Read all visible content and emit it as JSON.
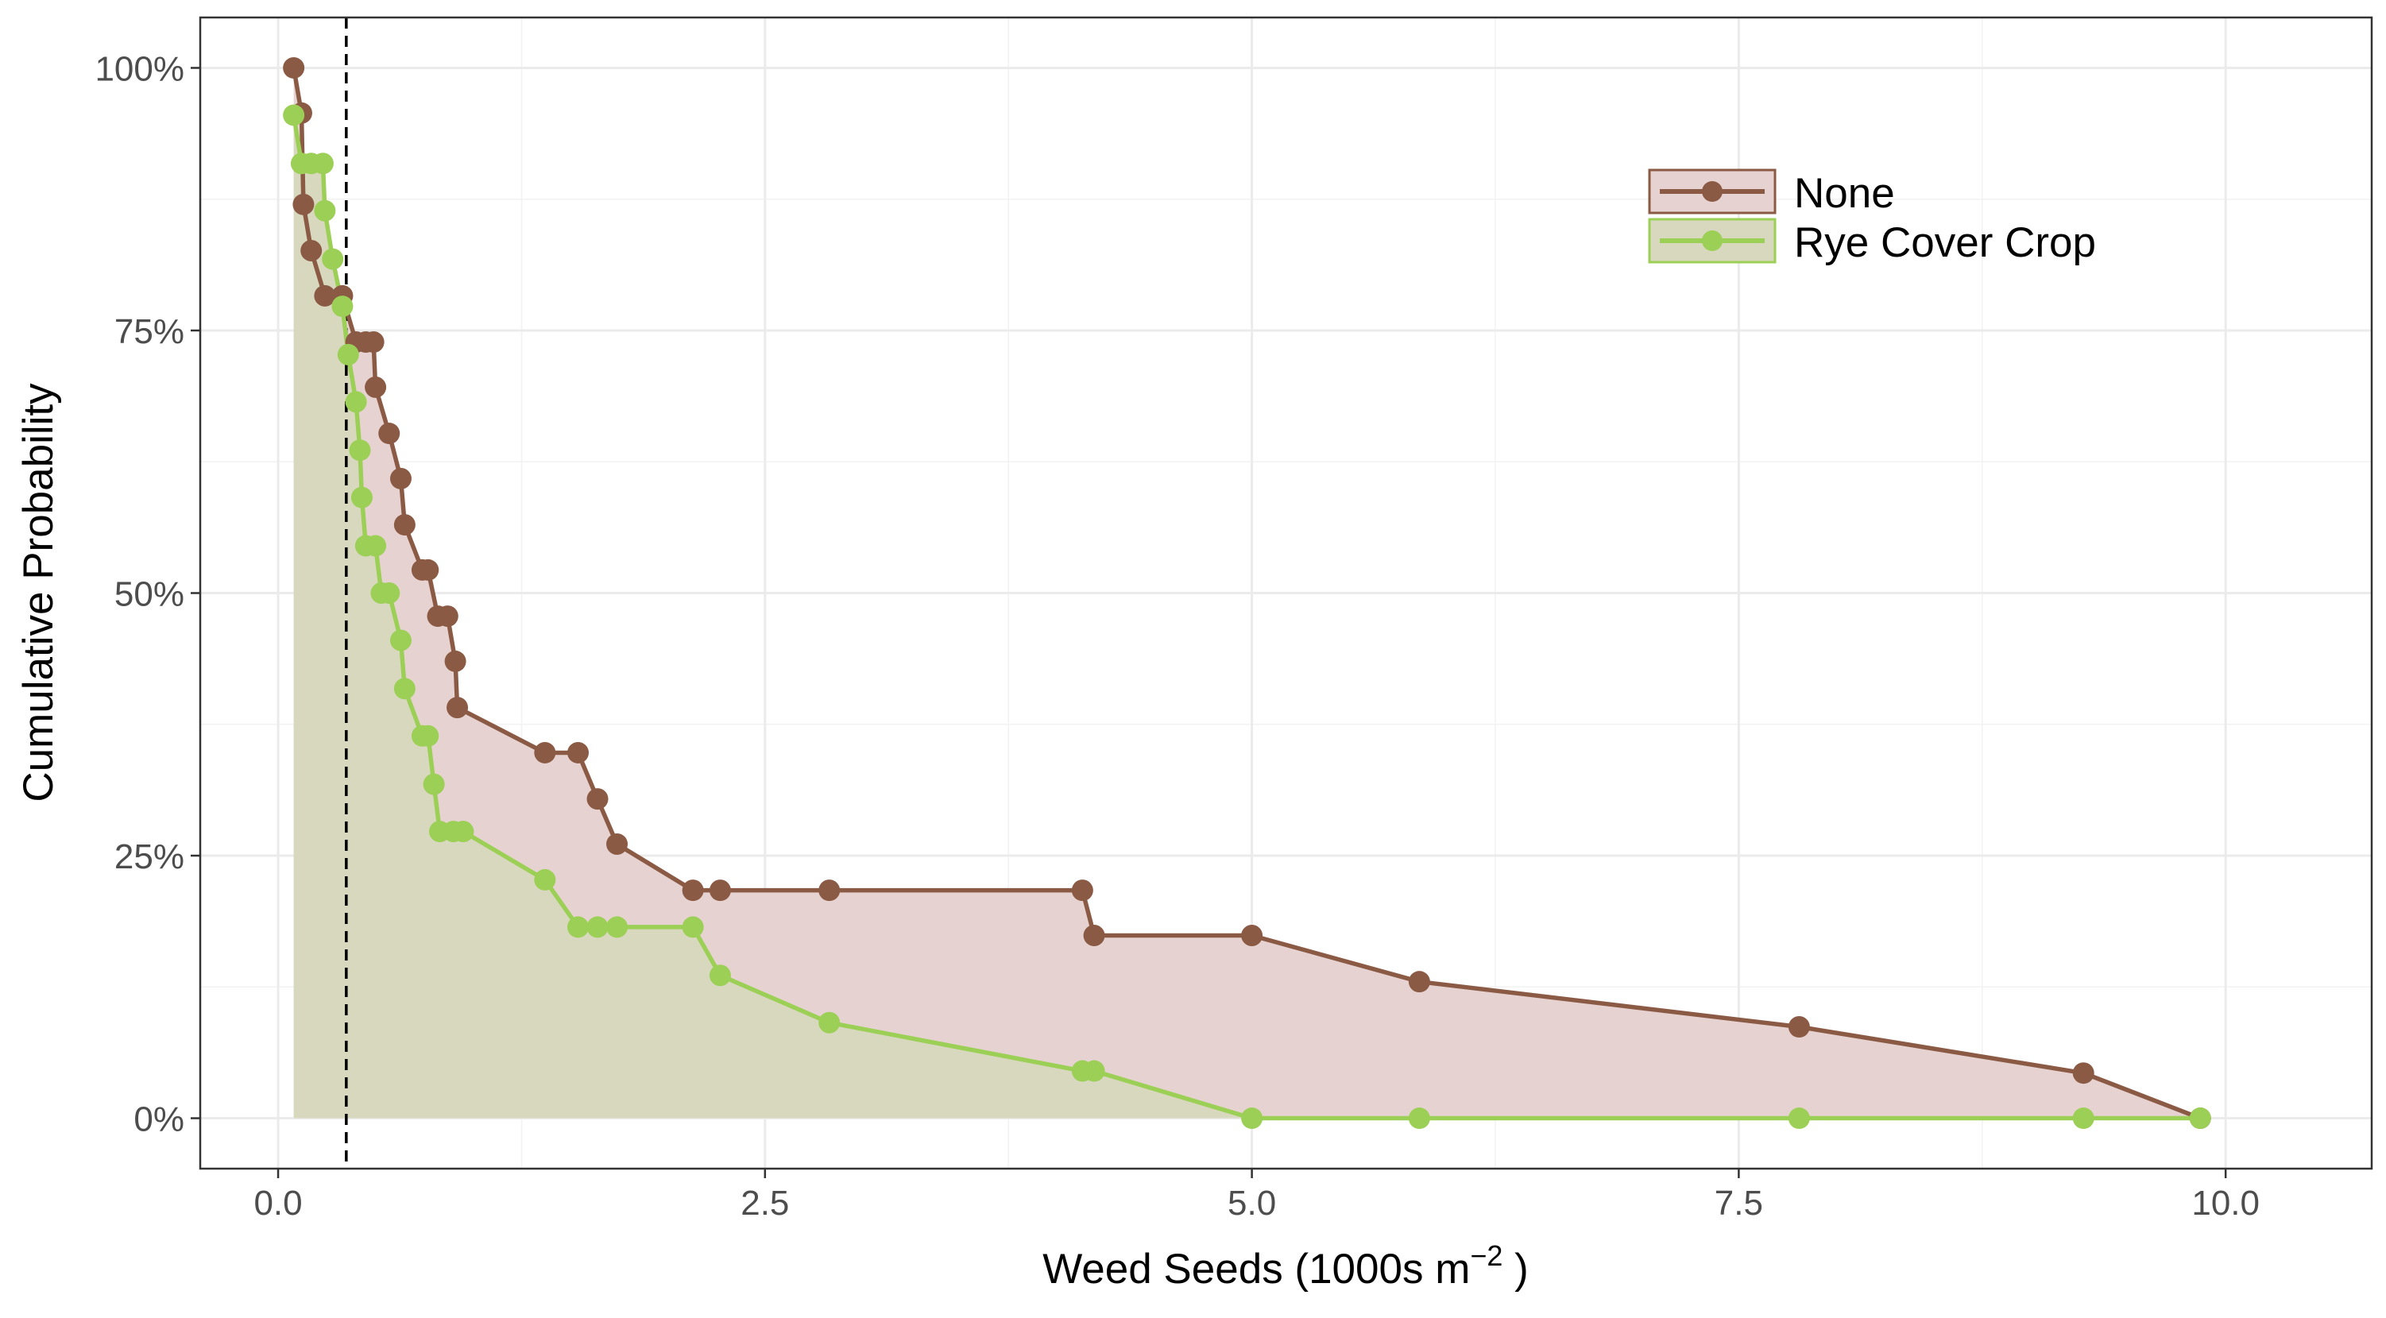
{
  "chart_data": {
    "type": "area",
    "xlabel": "Weed Seeds (1000s m",
    "xlabel_superscript": "−2",
    "xlabel_suffix": " )",
    "ylabel": "Cumulative Probability",
    "xlim": [
      -0.4,
      10.75
    ],
    "ylim": [
      -0.048,
      1.048
    ],
    "x_ticks": [
      0.0,
      2.5,
      5.0,
      7.5,
      10.0
    ],
    "x_tick_labels": [
      "0.0",
      "2.5",
      "5.0",
      "7.5",
      "10.0"
    ],
    "y_ticks": [
      0,
      0.25,
      0.5,
      0.75,
      1.0
    ],
    "y_tick_labels": [
      "0%",
      "25%",
      "50%",
      "75%",
      "100%"
    ],
    "grid": true,
    "legend_position": "top-right",
    "vline_x": 0.35,
    "series": [
      {
        "name": "None",
        "color": "#8b5a44",
        "fill": "#e6d3d1",
        "x": [
          0.08,
          0.12,
          0.13,
          0.17,
          0.24,
          0.33,
          0.4,
          0.45,
          0.49,
          0.5,
          0.57,
          0.63,
          0.65,
          0.74,
          0.77,
          0.82,
          0.87,
          0.91,
          0.92,
          1.37,
          1.54,
          1.64,
          1.74,
          2.13,
          2.27,
          2.83,
          4.13,
          4.19,
          5.0,
          5.86,
          7.81,
          9.27,
          9.87
        ],
        "y": [
          1.0,
          0.957,
          0.87,
          0.826,
          0.783,
          0.783,
          0.739,
          0.739,
          0.739,
          0.696,
          0.652,
          0.609,
          0.565,
          0.522,
          0.522,
          0.478,
          0.478,
          0.435,
          0.391,
          0.348,
          0.348,
          0.304,
          0.261,
          0.217,
          0.217,
          0.217,
          0.217,
          0.174,
          0.174,
          0.13,
          0.087,
          0.043,
          0.0
        ]
      },
      {
        "name": "Rye Cover Crop",
        "color": "#9ccf55",
        "fill": "#d8d8bf",
        "x": [
          0.08,
          0.12,
          0.17,
          0.23,
          0.24,
          0.28,
          0.33,
          0.36,
          0.4,
          0.42,
          0.43,
          0.45,
          0.5,
          0.53,
          0.57,
          0.63,
          0.65,
          0.74,
          0.77,
          0.8,
          0.83,
          0.9,
          0.95,
          1.37,
          1.54,
          1.64,
          1.74,
          2.13,
          2.27,
          2.83,
          4.13,
          4.19,
          5.0,
          5.86,
          7.81,
          9.27,
          9.87
        ],
        "y": [
          0.955,
          0.909,
          0.909,
          0.909,
          0.864,
          0.818,
          0.773,
          0.727,
          0.682,
          0.636,
          0.591,
          0.545,
          0.545,
          0.5,
          0.5,
          0.455,
          0.409,
          0.364,
          0.364,
          0.318,
          0.273,
          0.273,
          0.273,
          0.227,
          0.182,
          0.182,
          0.182,
          0.182,
          0.136,
          0.091,
          0.045,
          0.045,
          0.0,
          0.0,
          0.0,
          0.0,
          0.0
        ]
      }
    ]
  }
}
